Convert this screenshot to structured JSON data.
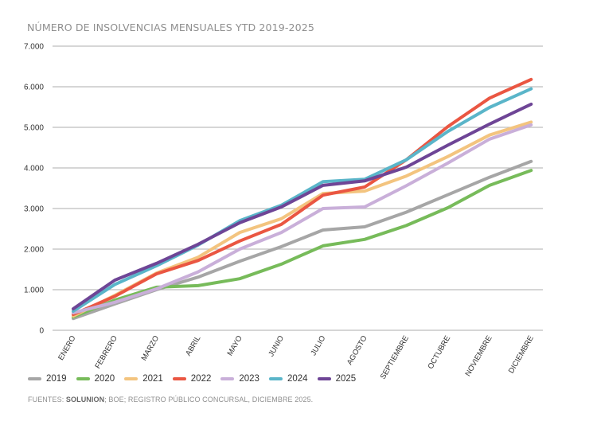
{
  "chart_data": {
    "type": "line",
    "title": "NÚMERO DE INSOLVENCIAS MENSUALES YTD 2019-2025",
    "xlabel": "",
    "ylabel": "",
    "ylim": [
      0,
      7000
    ],
    "yticks": [
      0,
      1000,
      2000,
      3000,
      4000,
      5000,
      6000,
      7000
    ],
    "ytick_labels": [
      "0",
      "1.000",
      "2.000",
      "3.000",
      "4.000",
      "5.000",
      "6.000",
      "7.000"
    ],
    "grid": true,
    "legend_position": "bottom-left",
    "categories": [
      "ENERO",
      "FEBRERO",
      "MARZO",
      "ABRIL",
      "MAYO",
      "JUNIO",
      "JULIO",
      "AGOSTO",
      "SEPTIEMBRE",
      "OCTUBRE",
      "NOVIEMBRE",
      "DICIEMBRE"
    ],
    "series": [
      {
        "name": "2019",
        "color": "#a6a6a6",
        "values": [
          290,
          650,
          1000,
          1310,
          1700,
          2060,
          2470,
          2550,
          2910,
          3340,
          3770,
          4160
        ]
      },
      {
        "name": "2020",
        "color": "#77bb5a",
        "values": [
          330,
          745,
          1060,
          1100,
          1270,
          1630,
          2080,
          2240,
          2580,
          3020,
          3570,
          3940
        ]
      },
      {
        "name": "2021",
        "color": "#f3c47f",
        "values": [
          350,
          860,
          1410,
          1800,
          2410,
          2750,
          3370,
          3430,
          3800,
          4280,
          4810,
          5130
        ]
      },
      {
        "name": "2022",
        "color": "#ea5642",
        "values": [
          390,
          840,
          1390,
          1720,
          2200,
          2610,
          3330,
          3530,
          4200,
          5020,
          5720,
          6180
        ]
      },
      {
        "name": "2023",
        "color": "#c9afd9",
        "values": [
          430,
          690,
          1020,
          1440,
          2000,
          2410,
          3000,
          3040,
          3560,
          4120,
          4710,
          5060
        ]
      },
      {
        "name": "2024",
        "color": "#5ab5c9",
        "values": [
          470,
          1130,
          1590,
          2100,
          2700,
          3080,
          3660,
          3720,
          4200,
          4900,
          5490,
          5950
        ]
      },
      {
        "name": "2025",
        "color": "#6e4596",
        "values": [
          530,
          1235,
          1650,
          2120,
          2650,
          3040,
          3570,
          3680,
          4020,
          4560,
          5080,
          5570
        ]
      }
    ]
  },
  "source": {
    "prefix": "FUENTES: ",
    "bold": "SOLUNION",
    "rest": "; BOE; REGISTRO PÚBLICO CONCURSAL, DICIEMBRE 2025."
  }
}
